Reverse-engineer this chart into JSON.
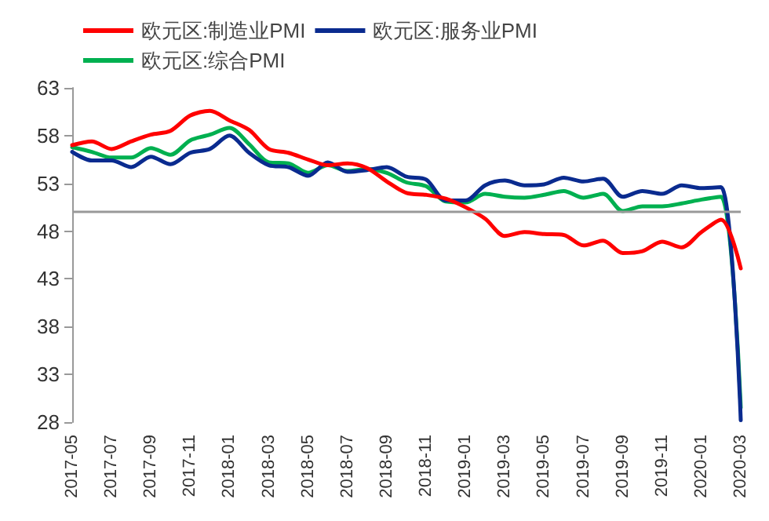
{
  "chart_data": {
    "type": "line",
    "categories": [
      "2017-05",
      null,
      "2017-07",
      null,
      "2017-09",
      null,
      "2017-11",
      null,
      "2018-01",
      null,
      "2018-03",
      null,
      "2018-05",
      null,
      "2018-07",
      null,
      "2018-09",
      null,
      "2018-11",
      null,
      "2019-01",
      null,
      "2019-03",
      null,
      "2019-05",
      null,
      "2019-07",
      null,
      "2019-09",
      null,
      "2019-11",
      null,
      "2020-01",
      null,
      "2020-03"
    ],
    "series": [
      {
        "name": "欧元区:制造业PMI",
        "color": "#ff0000",
        "values": [
          57.0,
          57.4,
          56.6,
          57.4,
          58.1,
          58.5,
          60.1,
          60.6,
          59.6,
          58.6,
          56.6,
          56.2,
          55.5,
          54.9,
          55.1,
          54.6,
          53.2,
          52.0,
          51.8,
          51.4,
          50.5,
          49.3,
          47.5,
          47.9,
          47.7,
          47.6,
          46.5,
          47.0,
          45.7,
          45.9,
          46.9,
          46.3,
          47.9,
          49.2,
          44.1
        ]
      },
      {
        "name": "欧元区:服务业PMI",
        "color": "#0a2b8f",
        "values": [
          56.3,
          55.4,
          55.4,
          54.7,
          55.8,
          55.0,
          56.2,
          56.6,
          58.0,
          56.2,
          54.9,
          54.7,
          53.8,
          55.2,
          54.2,
          54.4,
          54.7,
          53.7,
          53.4,
          51.2,
          51.2,
          52.8,
          53.3,
          52.8,
          52.9,
          53.6,
          53.2,
          53.5,
          51.6,
          52.2,
          51.9,
          52.8,
          52.5,
          52.6,
          28.2
        ]
      },
      {
        "name": "欧元区:综合PMI",
        "color": "#00b050",
        "values": [
          56.8,
          56.3,
          55.7,
          55.7,
          56.7,
          56.0,
          57.5,
          58.1,
          58.8,
          57.1,
          55.2,
          55.1,
          54.1,
          54.9,
          54.3,
          54.5,
          54.1,
          53.1,
          52.7,
          51.1,
          51.0,
          51.9,
          51.6,
          51.5,
          51.8,
          52.2,
          51.5,
          51.9,
          50.1,
          50.6,
          50.6,
          50.9,
          51.3,
          51.6,
          29.5
        ]
      }
    ],
    "ylim": [
      28,
      63
    ],
    "yticks": [
      28,
      33,
      38,
      43,
      48,
      53,
      58,
      63
    ],
    "ref_lines": [
      {
        "axis": "y",
        "value": 50,
        "color": "#999999"
      }
    ],
    "grid": false,
    "legend": "top",
    "marker": "none",
    "line_style": "solid"
  }
}
